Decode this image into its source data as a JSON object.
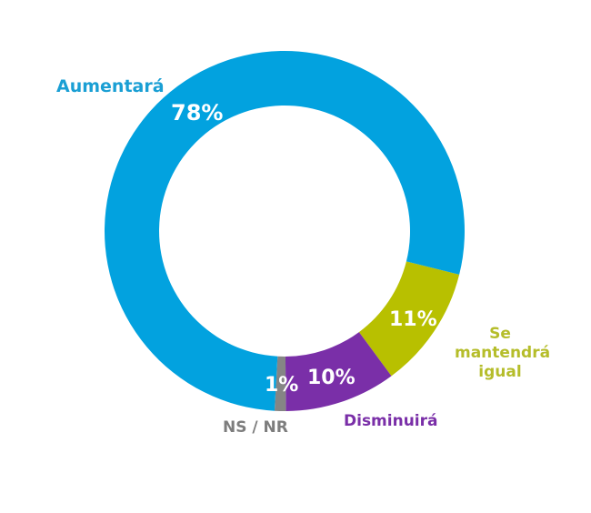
{
  "chart_data": {
    "type": "pie",
    "variant": "donut",
    "title": "",
    "slices": [
      {
        "label": "Aumentará",
        "value": 78,
        "display": "78%",
        "color": "#02a2df"
      },
      {
        "label": "Se mantendrá igual",
        "value": 11,
        "display": "11%",
        "color": "#b8c000"
      },
      {
        "label": "Disminuirá",
        "value": 10,
        "display": "10%",
        "color": "#7a2fa8"
      },
      {
        "label": "NS / NR",
        "value": 1,
        "display": "1%",
        "color": "#858585"
      }
    ],
    "start_angle_deg": 104,
    "direction": "clockwise",
    "legend": "inline labels"
  },
  "labels": {
    "aumentara": "Aumentará",
    "mantendra_1": "Se",
    "mantendra_2": "mantendrá",
    "mantendra_3": "igual",
    "disminuira": "Disminuirá",
    "nsnr": "NS / NR",
    "pct_aumentara": "78%",
    "pct_mantendra": "11%",
    "pct_disminuira": "10%",
    "pct_nsnr": "1%"
  }
}
